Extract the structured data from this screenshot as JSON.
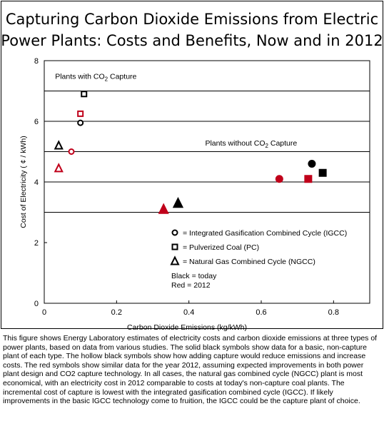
{
  "chart_data": {
    "type": "scatter",
    "title_lines": [
      "Capturing Carbon Dioxide Emissions from Electric",
      "Power Plants: Costs and Benefits, Now and in 2012"
    ],
    "xlabel": "Carbon Dioxide Emissions (kg/kWh)",
    "ylabel": "Cost of Electricity  ( ¢ / kWh)",
    "xlim": [
      0,
      0.9
    ],
    "ylim": [
      0,
      8
    ],
    "xticks": [
      0,
      0.2,
      0.4,
      0.6,
      0.8
    ],
    "xtick_labels": [
      "0",
      "0.2",
      "0.4",
      "0.6",
      "0.8"
    ],
    "yticks": [
      0,
      2,
      4,
      6,
      8
    ],
    "ytick_labels": [
      "0",
      "2",
      "4",
      "6",
      "8"
    ],
    "grid": "horizontal",
    "gridlines_y": [
      3,
      4,
      5,
      6,
      7
    ],
    "colors": {
      "today": "#000000",
      "year_2012": "#c0001a"
    },
    "annotations": [
      {
        "text": "Plants with CO",
        "sub": "2",
        "tail": " Capture",
        "x": 0.03,
        "y": 7.5
      },
      {
        "text": "Plants without CO",
        "sub": "2",
        "tail": " Capture",
        "x": 0.445,
        "y": 5.3
      }
    ],
    "series": [
      {
        "plant": "IGCC",
        "period": "today",
        "symbol": "circle",
        "filled": false,
        "x": 0.1,
        "y": 5.95
      },
      {
        "plant": "IGCC",
        "period": "2012",
        "symbol": "circle",
        "filled": false,
        "x": 0.075,
        "y": 5.0
      },
      {
        "plant": "IGCC",
        "period": "today",
        "symbol": "circle",
        "filled": true,
        "x": 0.74,
        "y": 4.6
      },
      {
        "plant": "IGCC",
        "period": "2012",
        "symbol": "circle",
        "filled": true,
        "x": 0.65,
        "y": 4.1
      },
      {
        "plant": "PC",
        "period": "today",
        "symbol": "square",
        "filled": false,
        "x": 0.11,
        "y": 6.9
      },
      {
        "plant": "PC",
        "period": "2012",
        "symbol": "square",
        "filled": false,
        "x": 0.1,
        "y": 6.25
      },
      {
        "plant": "PC",
        "period": "today",
        "symbol": "square",
        "filled": true,
        "x": 0.77,
        "y": 4.3
      },
      {
        "plant": "PC",
        "period": "2012",
        "symbol": "square",
        "filled": true,
        "x": 0.73,
        "y": 4.1
      },
      {
        "plant": "NGCC",
        "period": "today",
        "symbol": "triangle",
        "filled": false,
        "x": 0.04,
        "y": 5.2
      },
      {
        "plant": "NGCC",
        "period": "2012",
        "symbol": "triangle",
        "filled": false,
        "x": 0.04,
        "y": 4.45
      },
      {
        "plant": "NGCC",
        "period": "today",
        "symbol": "triangle",
        "filled": true,
        "x": 0.37,
        "y": 3.3
      },
      {
        "plant": "NGCC",
        "period": "2012",
        "symbol": "triangle",
        "filled": true,
        "x": 0.33,
        "y": 3.1
      }
    ],
    "legend": {
      "placement": "lower-middle",
      "items": [
        {
          "symbol": "circle",
          "label": "= Integrated Gasification Combined  Cycle (IGCC)"
        },
        {
          "symbol": "square",
          "label": "= Pulverized Coal (PC)"
        },
        {
          "symbol": "triangle",
          "label": "= Natural Gas Combined Cycle (NGCC)"
        }
      ],
      "notes": [
        "Black = today",
        "Red    = 2012"
      ]
    }
  },
  "caption": "This figure shows Energy Laboratory estimates of electricity costs and carbon dioxide emissions at three types of power plants, based on data from various studies. The solid black symbols show data for a basic, non-capture plant of each type. The hollow black symbols show how adding capture would reduce emissions and increase costs. The red symbols show similar data for the year 2012, assuming expected improvements in both power plant design and CO2 capture technology. In all cases, the natural gas combined cycle (NGCC) plant is most economical, with an electricity cost in 2012 comparable to costs at today's non-capture coal plants. The incremental cost of capture is lowest with the integrated gasification combined cycle (IGCC). If likely improvements in the basic IGCC technology come to fruition, the  IGCC could be the capture plant of choice."
}
